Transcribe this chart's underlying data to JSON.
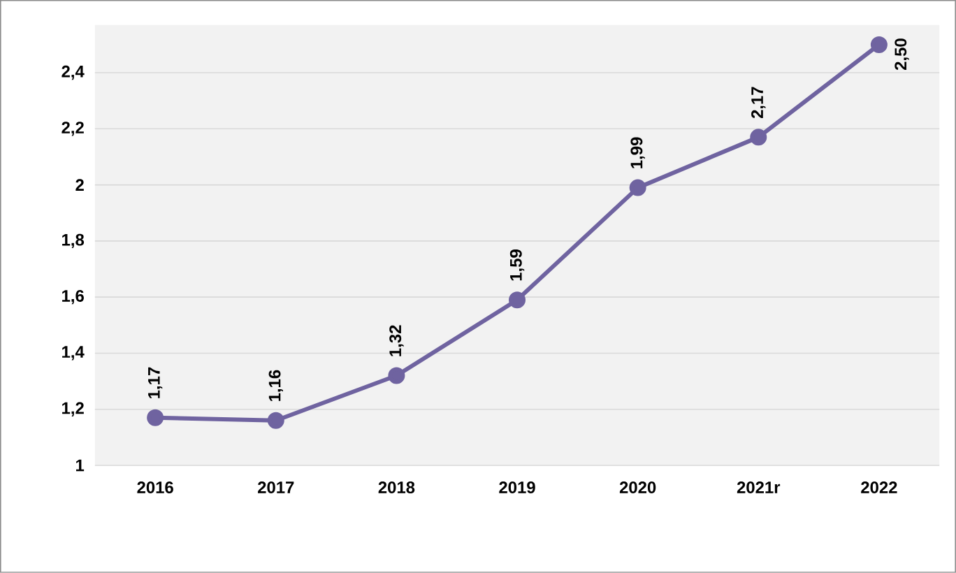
{
  "chart_data": {
    "type": "line",
    "categories": [
      "2016",
      "2017",
      "2018",
      "2019",
      "2020",
      "2021r",
      "2022"
    ],
    "values": [
      1.17,
      1.16,
      1.32,
      1.59,
      1.99,
      2.17,
      2.5
    ],
    "value_labels": [
      "1,17",
      "1,16",
      "1,32",
      "1,59",
      "1,99",
      "2,17",
      "2,50"
    ],
    "color": "#6f63a0",
    "marker": "circle",
    "line_style": "solid",
    "grid": "y",
    "ylim": [
      1,
      2.57
    ],
    "yticks": [
      {
        "value": 1,
        "label": "1"
      },
      {
        "value": 1.2,
        "label": "1,2"
      },
      {
        "value": 1.4,
        "label": "1,4"
      },
      {
        "value": 1.6,
        "label": "1,6"
      },
      {
        "value": 1.8,
        "label": "1,8"
      },
      {
        "value": 2,
        "label": "2"
      },
      {
        "value": 2.2,
        "label": "2,2"
      },
      {
        "value": 2.4,
        "label": "2,4"
      }
    ]
  }
}
